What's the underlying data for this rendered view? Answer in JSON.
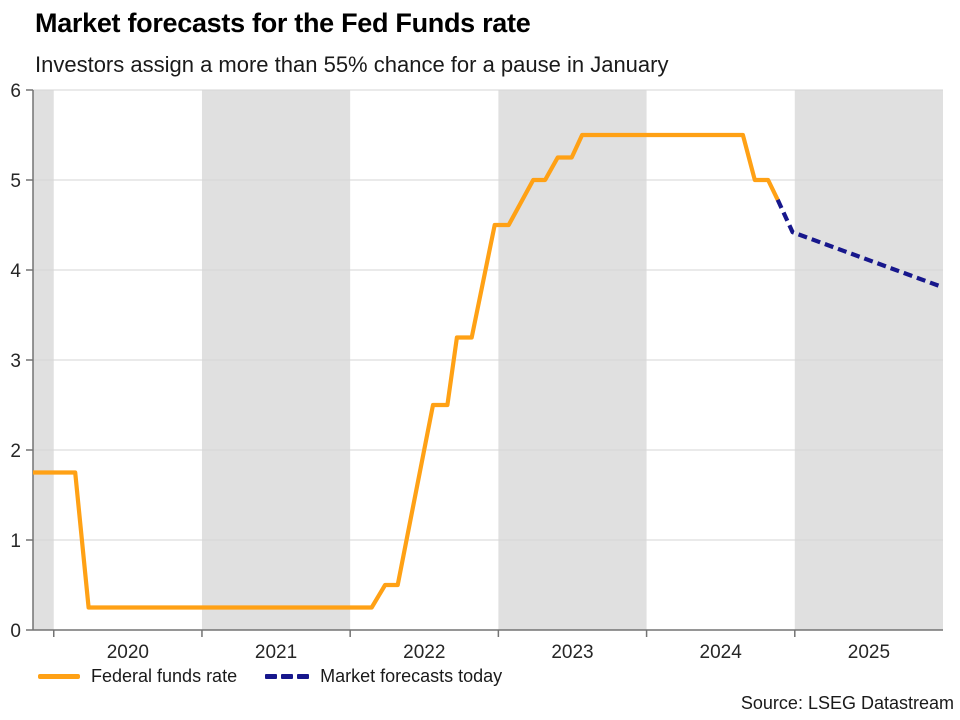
{
  "header": {
    "title": "Market forecasts for the Fed Funds rate",
    "subtitle": "Investors assign a more than 55% chance for a pause in January"
  },
  "footer": {
    "source": "Source: LSEG Datastream"
  },
  "chart_data": {
    "type": "line",
    "title": "Market forecasts for the Fed Funds rate",
    "subtitle": "Investors assign a more than 55% chance for a pause in January",
    "x_axis": {
      "min": 2019.86,
      "max": 2026,
      "boundary_ticks": [
        2020,
        2021,
        2022,
        2023,
        2024,
        2025
      ],
      "labels": [
        {
          "text": "2020",
          "center": 2020.5
        },
        {
          "text": "2021",
          "center": 2021.5
        },
        {
          "text": "2022",
          "center": 2022.5
        },
        {
          "text": "2023",
          "center": 2023.5
        },
        {
          "text": "2024",
          "center": 2024.5
        },
        {
          "text": "2025",
          "center": 2025.5
        }
      ]
    },
    "y_axis": {
      "min": 0,
      "max": 6,
      "ticks": [
        0,
        1,
        2,
        3,
        4,
        5,
        6
      ]
    },
    "grid": "horizontal",
    "legend_position": "bottom-left",
    "shaded_bands": [
      [
        2019.86,
        2020
      ],
      [
        2021,
        2022
      ],
      [
        2023,
        2024
      ],
      [
        2025,
        2026
      ]
    ],
    "colors": {
      "band": "#E0E0E0",
      "grid": "#D6D6D6",
      "axis": "#737373",
      "tick_text": "#262626",
      "federal_funds": "#FFA115",
      "forecast": "#17178C"
    },
    "series": [
      {
        "name": "Federal funds rate",
        "color": "#FFA115",
        "style": "solid",
        "points": [
          [
            2019.86,
            1.75
          ],
          [
            2020.145,
            1.75
          ],
          [
            2020.235,
            0.25
          ],
          [
            2022.145,
            0.25
          ],
          [
            2022.236,
            0.5
          ],
          [
            2022.321,
            0.5
          ],
          [
            2022.559,
            2.5
          ],
          [
            2022.656,
            2.5
          ],
          [
            2022.72,
            3.25
          ],
          [
            2022.82,
            3.25
          ],
          [
            2022.975,
            4.5
          ],
          [
            2023.07,
            4.5
          ],
          [
            2023.235,
            5.0
          ],
          [
            2023.315,
            5.0
          ],
          [
            2023.4,
            5.25
          ],
          [
            2023.495,
            5.25
          ],
          [
            2023.565,
            5.5
          ],
          [
            2024.65,
            5.5
          ],
          [
            2024.73,
            5.0
          ],
          [
            2024.82,
            5.0
          ],
          [
            2024.885,
            4.78
          ]
        ]
      },
      {
        "name": "Market forecasts today",
        "color": "#17178C",
        "style": "dashed",
        "points": [
          [
            2024.885,
            4.78
          ],
          [
            2024.985,
            4.42
          ],
          [
            2025.98,
            3.82
          ]
        ]
      }
    ]
  }
}
